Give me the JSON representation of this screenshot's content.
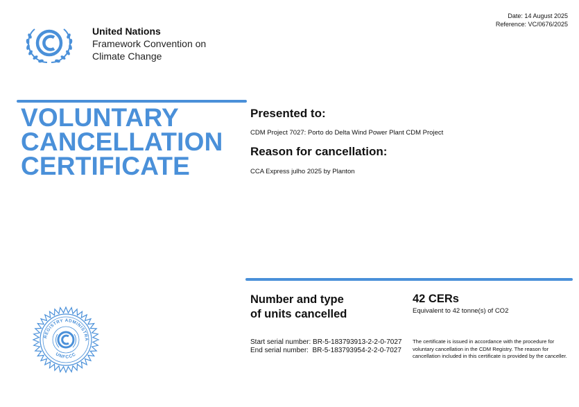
{
  "header": {
    "date": "Date: 14 August 2025",
    "reference": "Reference: VC/0676/2025"
  },
  "organization": {
    "line1": "United Nations",
    "line2": "Framework Convention on",
    "line3": "Climate Change"
  },
  "title": {
    "line1": "VOLUNTARY",
    "line2": "CANCELLATION",
    "line3": "CERTIFICATE"
  },
  "presented": {
    "label": "Presented to:",
    "value": "CDM Project 7027: Porto do Delta Wind Power Plant CDM Project"
  },
  "reason": {
    "label": "Reason for cancellation:",
    "value": "CCA Express julho 2025 by Planton"
  },
  "units": {
    "label_line1": "Number and type",
    "label_line2": "of units cancelled",
    "value": "42 CERs",
    "equivalent": "Equivalent to 42 tonne(s) of CO2"
  },
  "serials": {
    "start": "Start serial number: BR-5-183793913-2-2-0-7027",
    "end": "End serial number:  BR-5-183793954-2-2-0-7027"
  },
  "disclaimer": "The certificate is issued in accordance with the procedure for voluntary cancellation in the CDM Registry. The reason for cancellation included in this certificate is provided by the canceller.",
  "seal": {
    "top_text": "CDM REGISTRY ADMINISTRATOR",
    "bottom_text": "UNFCCC"
  },
  "colors": {
    "accent": "#4a90d9"
  }
}
